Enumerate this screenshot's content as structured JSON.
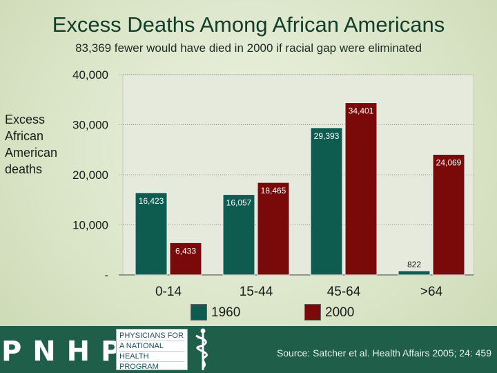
{
  "title": "Excess Deaths Among African Americans",
  "subtitle": "83,369 fewer would have died in 2000 if racial gap were eliminated",
  "footer": {
    "logo_text": "P N H P",
    "org_lines": [
      "PHYSICIANS FOR",
      "A NATIONAL",
      "HEALTH",
      "PROGRAM"
    ],
    "source": "Source: Satcher et al. Health Affairs 2005; 24: 459"
  },
  "colors": {
    "series_1960": "#0e5c50",
    "series_2000": "#7a0a0a",
    "plot_bg": "#e6eadc",
    "footer_bg": "#1f5f4a"
  },
  "chart_data": {
    "type": "bar",
    "title": "Excess Deaths Among African Americans",
    "subtitle": "83,369 fewer would have died in 2000 if racial gap were eliminated",
    "ylabel_lines": [
      "Excess",
      "African",
      "American",
      "deaths"
    ],
    "xlabel": "",
    "categories": [
      "0-14",
      "15-44",
      "45-64",
      ">64"
    ],
    "ylim": [
      0,
      40000
    ],
    "yticks": [
      0,
      10000,
      20000,
      30000,
      40000
    ],
    "ytick_labels": [
      "-",
      "10,000",
      "20,000",
      "30,000",
      "40,000"
    ],
    "grid": true,
    "legend_position": "bottom",
    "series": [
      {
        "name": "1960",
        "values": [
          16423,
          16057,
          29393,
          822
        ],
        "labels": [
          "16,423",
          "16,057",
          "29,393",
          "822"
        ]
      },
      {
        "name": "2000",
        "values": [
          6433,
          18465,
          34401,
          24069
        ],
        "labels": [
          "6,433",
          "18,465",
          "34,401",
          "24,069"
        ]
      }
    ]
  }
}
